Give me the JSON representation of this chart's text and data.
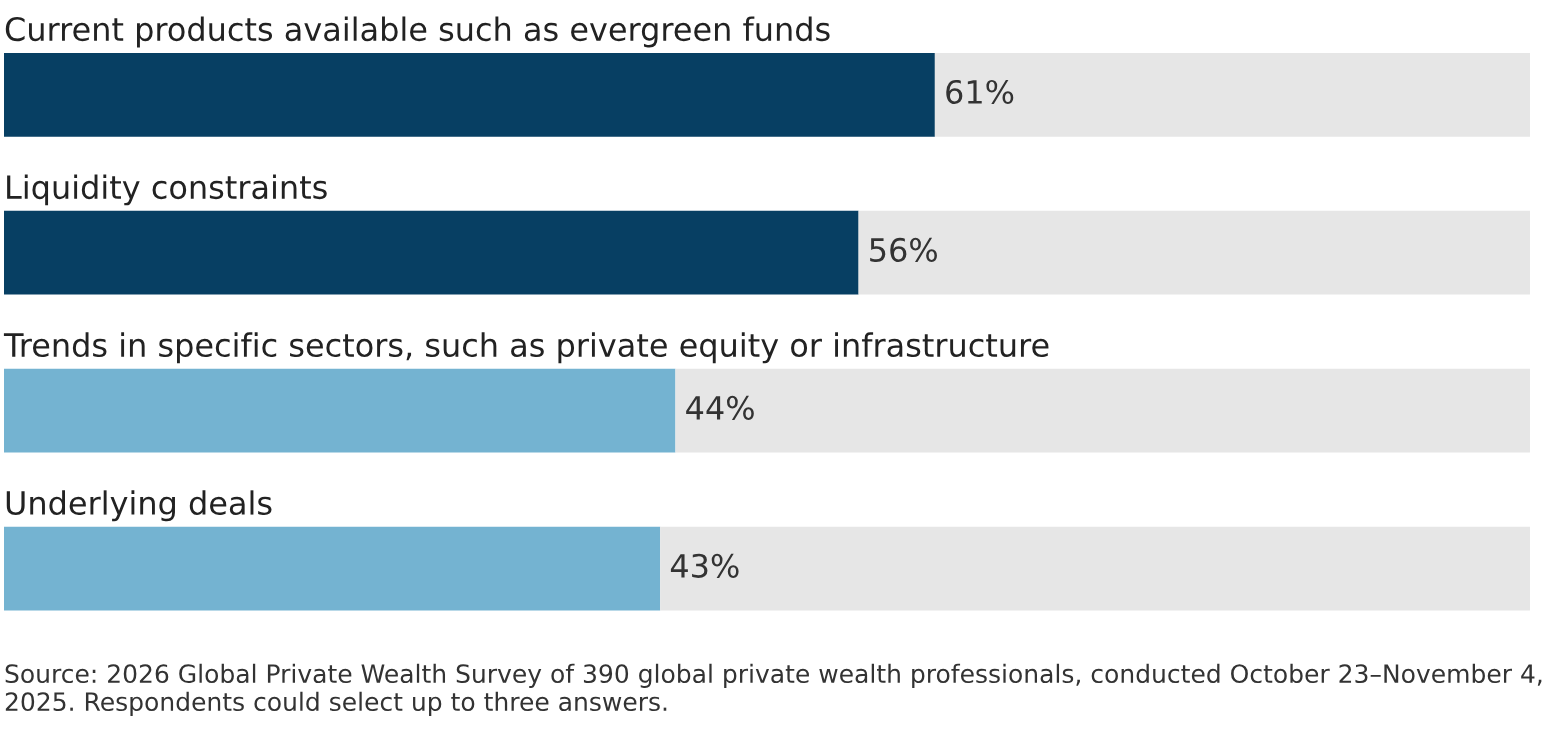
{
  "chart_data": {
    "type": "bar",
    "orientation": "horizontal",
    "stacked": true,
    "categories": [
      "Current products available such as evergreen funds",
      "Liquidity constraints",
      "Trends in specific sectors, such as private equity or infrastructure",
      "Underlying deals"
    ],
    "series": [
      {
        "colors": [
          "#073f63",
          "#073f63",
          "#74b3d1",
          "#74b3d1"
        ],
        "values": [
          61,
          56,
          44,
          43
        ],
        "value_labels": [
          "61%",
          "56%",
          "44%",
          "43%"
        ]
      },
      {
        "color": "#e6e6e6",
        "values": [
          39,
          44,
          56,
          57
        ]
      }
    ],
    "xlim": [
      0,
      100
    ],
    "tick_labels": false,
    "legend": false,
    "annotations": [
      "Source: 2026 Global Private Wealth Survey of 390 global private wealth professionals, conducted October 23–November 4, 2025. Respondents could select up to three answers."
    ]
  }
}
